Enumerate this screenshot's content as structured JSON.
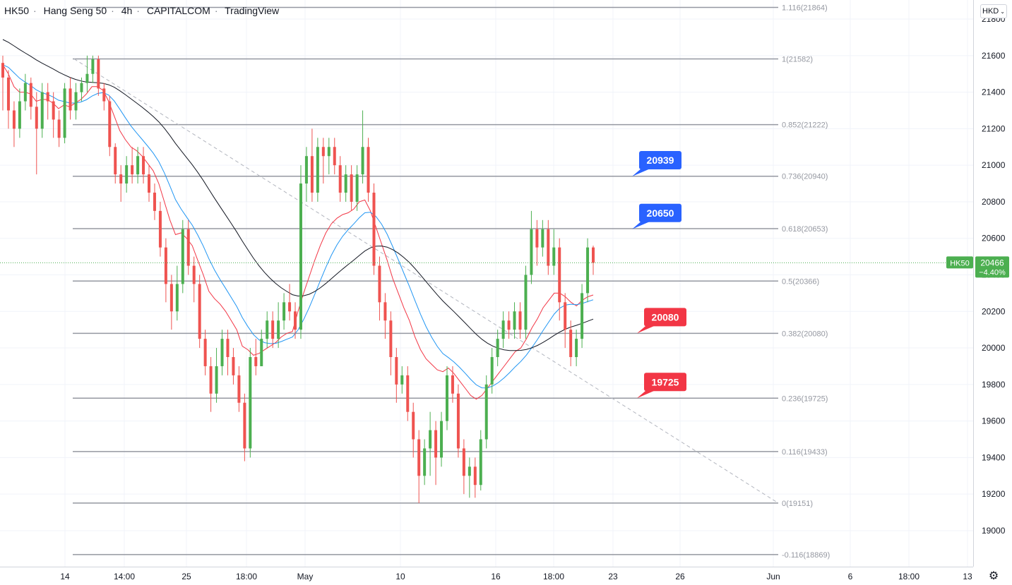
{
  "header": {
    "symbol": "HK50",
    "name": "Hang Seng 50",
    "interval": "4h",
    "exchange": "CAPITALCOM",
    "source": "TradingView",
    "currency": "HKD"
  },
  "icons": {
    "settings": "gear-icon",
    "currency_dropdown": "chevron-down-icon"
  },
  "colors": {
    "up": "#4caf50",
    "down": "#ef5350",
    "ema_fast": "#f23645",
    "ema_mid": "#2196f3",
    "ema_slow": "#131722",
    "fib": "#9598a1",
    "blue_label": "#2962ff",
    "red_label": "#f23645",
    "price_tag": "#4caf50"
  },
  "chart_data": {
    "type": "candlestick",
    "y_ticks": [
      21800,
      21600,
      21400,
      21200,
      21000,
      20800,
      20600,
      20400,
      20200,
      20000,
      19800,
      19600,
      19400,
      19200,
      19000
    ],
    "x_ticks": [
      "14",
      "14:00",
      "25",
      "18:00",
      "May",
      "10",
      "16",
      "18:00",
      "23",
      "26",
      "Jun",
      "6",
      "18:00",
      "13"
    ],
    "last_price": {
      "symbol": "HK50",
      "value": "20466",
      "change": "−4.40%"
    },
    "fib_levels": [
      {
        "ratio": "1.116",
        "price": 21864,
        "label": "1.116(21864)"
      },
      {
        "ratio": "1",
        "price": 21582,
        "label": "1(21582)"
      },
      {
        "ratio": "0.852",
        "price": 21222,
        "label": "0.852(21222)"
      },
      {
        "ratio": "0.736",
        "price": 20940,
        "label": "0.736(20940)"
      },
      {
        "ratio": "0.618",
        "price": 20653,
        "label": "0.618(20653)"
      },
      {
        "ratio": "0.5",
        "price": 20366,
        "label": "0.5(20366)"
      },
      {
        "ratio": "0.382",
        "price": 20080,
        "label": "0.382(20080)"
      },
      {
        "ratio": "0.236",
        "price": 19725,
        "label": "0.236(19725)"
      },
      {
        "ratio": "0.116",
        "price": 19433,
        "label": "0.116(19433)"
      },
      {
        "ratio": "0",
        "price": 19151,
        "label": "0(19151)"
      },
      {
        "ratio": "-0.116",
        "price": 18869,
        "label": "-0.116(18869)"
      }
    ],
    "callouts": [
      {
        "text": "20939",
        "price": 20939,
        "color": "blue"
      },
      {
        "text": "20650",
        "price": 20650,
        "color": "blue"
      },
      {
        "text": "20080",
        "price": 20080,
        "color": "red"
      },
      {
        "text": "19725",
        "price": 19725,
        "color": "red"
      }
    ],
    "trendline": {
      "from": 21582,
      "to": 19151,
      "style": "dashed"
    },
    "candles": [
      [
        21560,
        21480,
        21600,
        21300
      ],
      [
        21480,
        21300,
        21520,
        21200
      ],
      [
        21300,
        21200,
        21350,
        21100
      ],
      [
        21200,
        21350,
        21420,
        21150
      ],
      [
        21350,
        21450,
        21500,
        21300
      ],
      [
        21450,
        21320,
        21480,
        21250
      ],
      [
        21320,
        21200,
        21400,
        20950
      ],
      [
        21200,
        21400,
        21450,
        21150
      ],
      [
        21400,
        21350,
        21450,
        21250
      ],
      [
        21350,
        21250,
        21400,
        21150
      ],
      [
        21250,
        21150,
        21300,
        21100
      ],
      [
        21150,
        21420,
        21450,
        21120
      ],
      [
        21420,
        21300,
        21480,
        21250
      ],
      [
        21300,
        21400,
        21450,
        21250
      ],
      [
        21400,
        21450,
        21480,
        21350
      ],
      [
        21450,
        21500,
        21600,
        21400
      ],
      [
        21500,
        21580,
        21600,
        21450
      ],
      [
        21580,
        21420,
        21600,
        21380
      ],
      [
        21420,
        21350,
        21450,
        21300
      ],
      [
        21350,
        21100,
        21380,
        21050
      ],
      [
        21100,
        20950,
        21120,
        20900
      ],
      [
        20950,
        20900,
        21000,
        20800
      ],
      [
        20900,
        21000,
        21050,
        20850
      ],
      [
        21000,
        20950,
        21100,
        20900
      ],
      [
        20950,
        21050,
        21100,
        20900
      ],
      [
        21050,
        20950,
        21100,
        20900
      ],
      [
        20950,
        20850,
        21000,
        20800
      ],
      [
        20850,
        20750,
        20900,
        20700
      ],
      [
        20750,
        20550,
        20800,
        20500
      ],
      [
        20550,
        20350,
        20600,
        20250
      ],
      [
        20350,
        20200,
        20400,
        20100
      ],
      [
        20200,
        20350,
        20450,
        20150
      ],
      [
        20350,
        20650,
        20700,
        20300
      ],
      [
        20650,
        20450,
        20700,
        20400
      ],
      [
        20450,
        20350,
        20500,
        20250
      ],
      [
        20350,
        20050,
        20400,
        20000
      ],
      [
        20050,
        19900,
        20100,
        19850
      ],
      [
        19900,
        19750,
        19950,
        19650
      ],
      [
        19750,
        19900,
        20000,
        19700
      ],
      [
        19900,
        20050,
        20100,
        19850
      ],
      [
        20050,
        19950,
        20100,
        19850
      ],
      [
        19950,
        19850,
        20000,
        19800
      ],
      [
        19850,
        19700,
        19900,
        19650
      ],
      [
        19700,
        19450,
        19750,
        19380
      ],
      [
        19450,
        19950,
        20000,
        19400
      ],
      [
        19950,
        19900,
        20050,
        19850
      ],
      [
        19900,
        20050,
        20100,
        19900
      ],
      [
        20050,
        20150,
        20200,
        20000
      ],
      [
        20150,
        20050,
        20200,
        20000
      ],
      [
        20050,
        20150,
        20250,
        20000
      ],
      [
        20150,
        20250,
        20300,
        20100
      ],
      [
        20250,
        20200,
        20350,
        20150
      ],
      [
        20200,
        20100,
        20250,
        20050
      ],
      [
        20100,
        20900,
        21000,
        20050
      ],
      [
        20900,
        21050,
        21100,
        20800
      ],
      [
        21050,
        20850,
        21200,
        20800
      ],
      [
        20850,
        21100,
        21150,
        20800
      ],
      [
        21100,
        21050,
        21150,
        20900
      ],
      [
        21050,
        21100,
        21150,
        20950
      ],
      [
        21100,
        21000,
        21150,
        20950
      ],
      [
        21000,
        20850,
        21050,
        20800
      ],
      [
        20850,
        20950,
        21000,
        20800
      ],
      [
        20950,
        20800,
        21000,
        20750
      ],
      [
        20800,
        20950,
        21000,
        20750
      ],
      [
        20950,
        21100,
        21300,
        20900
      ],
      [
        21100,
        20850,
        21150,
        20800
      ],
      [
        20850,
        20450,
        20900,
        20400
      ],
      [
        20450,
        20250,
        20500,
        20150
      ],
      [
        20250,
        20150,
        20300,
        20050
      ],
      [
        20150,
        19950,
        20200,
        19850
      ],
      [
        19950,
        19800,
        20000,
        19700
      ],
      [
        19800,
        19850,
        19900,
        19750
      ],
      [
        19850,
        19650,
        19900,
        19600
      ],
      [
        19650,
        19500,
        19700,
        19400
      ],
      [
        19500,
        19300,
        19550,
        19151
      ],
      [
        19300,
        19450,
        19500,
        19250
      ],
      [
        19450,
        19550,
        19650,
        19300
      ],
      [
        19550,
        19400,
        19600,
        19250
      ],
      [
        19400,
        19600,
        19650,
        19350
      ],
      [
        19600,
        19850,
        19900,
        19550
      ],
      [
        19850,
        19750,
        19900,
        19700
      ],
      [
        19750,
        19450,
        19800,
        19400
      ],
      [
        19450,
        19300,
        19500,
        19200
      ],
      [
        19300,
        19350,
        19400,
        19180
      ],
      [
        19350,
        19250,
        19400,
        19180
      ],
      [
        19250,
        19500,
        19550,
        19220
      ],
      [
        19500,
        19800,
        19850,
        19450
      ],
      [
        19800,
        19950,
        20000,
        19750
      ],
      [
        19950,
        20050,
        20100,
        19900
      ],
      [
        20050,
        20150,
        20200,
        20000
      ],
      [
        20150,
        20100,
        20200,
        20050
      ],
      [
        20100,
        20200,
        20250,
        20050
      ],
      [
        20200,
        20100,
        20250,
        20050
      ],
      [
        20100,
        20400,
        20450,
        20050
      ],
      [
        20400,
        20650,
        20750,
        20350
      ],
      [
        20650,
        20550,
        20700,
        20450
      ],
      [
        20550,
        20650,
        20700,
        20500
      ],
      [
        20650,
        20450,
        20700,
        20400
      ],
      [
        20450,
        20550,
        20650,
        20400
      ],
      [
        20550,
        20250,
        20600,
        20150
      ],
      [
        20250,
        20100,
        20300,
        20000
      ],
      [
        20100,
        19950,
        20150,
        19900
      ],
      [
        19950,
        20050,
        20100,
        19900
      ],
      [
        20050,
        20300,
        20350,
        20000
      ],
      [
        20300,
        20550,
        20600,
        20250
      ],
      [
        20550,
        20466,
        20560,
        20400
      ]
    ],
    "ema_fast": [
      21550,
      21500,
      21430,
      21400,
      21400,
      21390,
      21350,
      21360,
      21360,
      21340,
      21310,
      21330,
      21320,
      21340,
      21360,
      21390,
      21430,
      21430,
      21410,
      21350,
      21270,
      21190,
      21140,
      21100,
      21080,
      21050,
      21010,
      20970,
      20900,
      20800,
      20700,
      20620,
      20630,
      20600,
      20560,
      20480,
      20400,
      20310,
      20270,
      20240,
      20200,
      20150,
      20100,
      20010,
      19990,
      19960,
      19970,
      19990,
      20010,
      20030,
      20060,
      20080,
      20090,
      20200,
      20300,
      20390,
      20480,
      20560,
      20630,
      20680,
      20710,
      20730,
      20740,
      20760,
      20800,
      20810,
      20750,
      20660,
      20570,
      20480,
      20380,
      20300,
      20220,
      20150,
      20060,
      19990,
      19940,
      19910,
      19880,
      19870,
      19890,
      19860,
      19820,
      19780,
      19740,
      19720,
      19740,
      19780,
      19820,
      19860,
      19900,
      19940,
      19980,
      20000,
      20050,
      20110,
      20160,
      20220,
      20260,
      20300,
      20300,
      20280,
      20250,
      20230,
      20260,
      20280,
      20290
    ]
  }
}
